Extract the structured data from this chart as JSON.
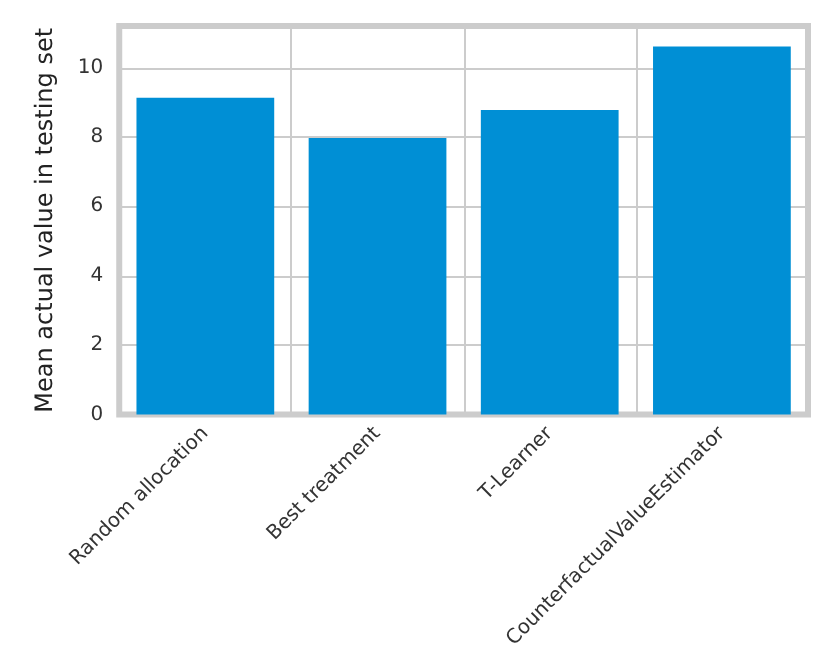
{
  "chart_data": {
    "type": "bar",
    "ylabel": "Mean actual value in testing set",
    "categories": [
      "Random allocation",
      "Best treatment",
      "T-Learner",
      "CounterfactualValueEstimator"
    ],
    "values": [
      9.13,
      7.97,
      8.78,
      10.61
    ],
    "color": "#008fd5",
    "ylim": [
      0,
      11.2
    ],
    "yticks": [
      0,
      2,
      4,
      6,
      8,
      10
    ],
    "grid": true
  }
}
